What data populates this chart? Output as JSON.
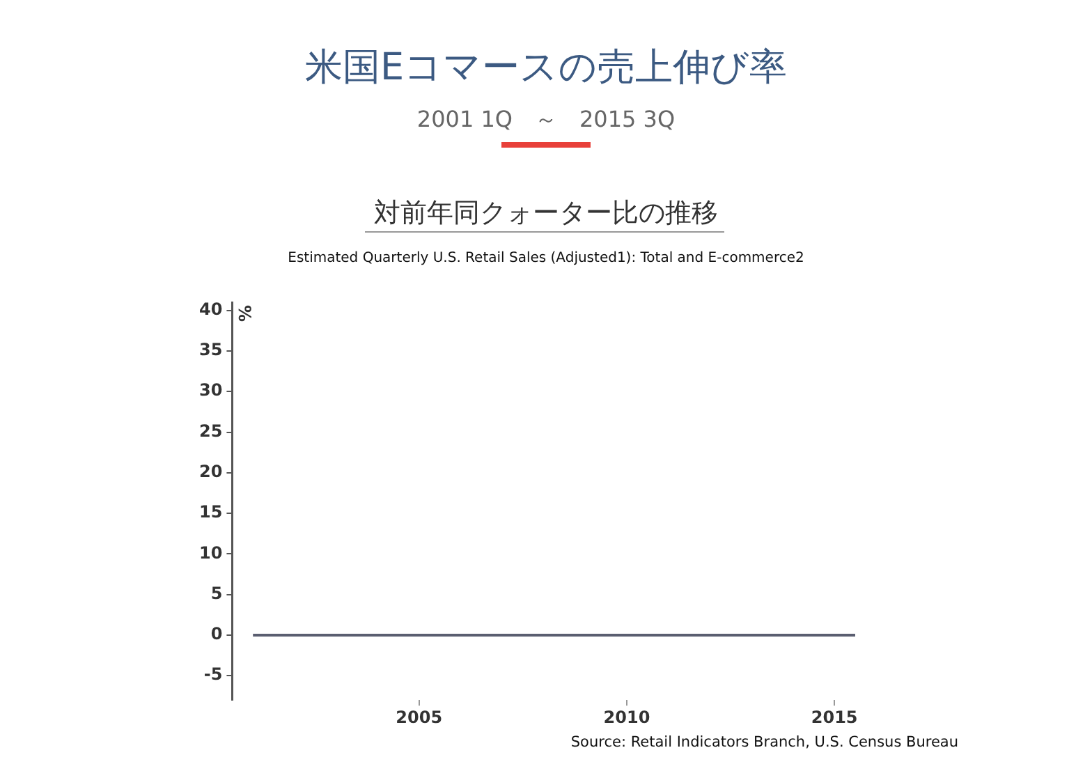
{
  "chart_data": {
    "type": "line",
    "title": "米国Eコマースの売上伸び率",
    "subtitle": "2001 1Q　～　2015 3Q",
    "ylabel": "%",
    "annotations": [
      "対前年同クォーター比の推移",
      "Estimated Quarterly U.S. Retail Sales (Adjusted1): Total and E-commerce2",
      "Source: Retail Indicators Branch, U.S. Census Bureau"
    ],
    "x": [
      2001,
      2015.5
    ],
    "series": [
      {
        "color": "#5a5e70",
        "values": [
          0,
          0
        ]
      }
    ],
    "xlim": [
      2000.5,
      2015.5
    ],
    "xticks": [
      2005,
      2010,
      2015
    ],
    "ylim": [
      -8,
      41
    ],
    "yticks": [
      -5,
      0,
      5,
      10,
      15,
      20,
      25,
      30,
      35,
      40
    ],
    "grid": false,
    "legend": false,
    "marker": "none",
    "line_style": "solid"
  }
}
